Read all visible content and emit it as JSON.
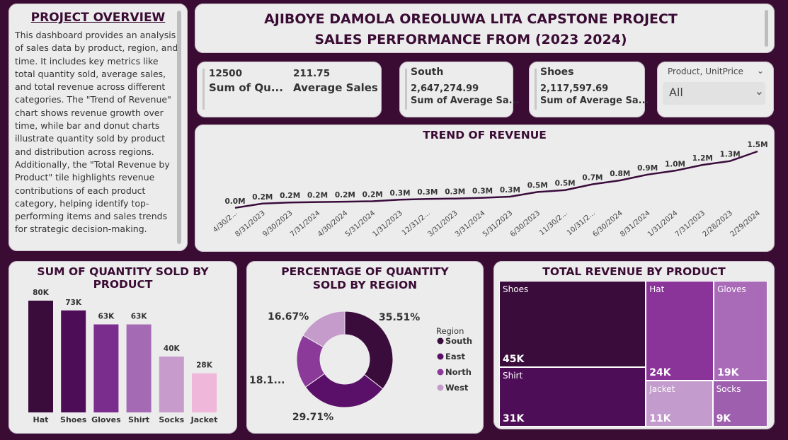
{
  "overview": {
    "title": "PROJECT OVERVIEW",
    "text": "This dashboard provides an analysis of sales data by product, region, and time. It includes key metrics like total quantity sold, average sales, and total revenue across different categories. The \"Trend of Revenue\" chart shows revenue growth over time, while bar and donut charts illustrate quantity sold by product and distribution across regions. Additionally, the \"Total Revenue by Product\" tile highlights revenue contributions of each product category, helping identify top-performing items and sales trends for strategic decision-making."
  },
  "header": {
    "line1": "AJIBOYE DAMOLA OREOLUWA LITA CAPSTONE PROJECT",
    "line2": "SALES PERFORMANCE FROM (2023  2024)"
  },
  "kpis": {
    "qty_value": "12500",
    "qty_label": "Sum of Qu...",
    "avg_value": "211.75",
    "avg_label": "Average Sales",
    "region_name": "South",
    "region_value": "2,647,274.99",
    "region_label": "Sum of Average Sa...",
    "product_name": "Shoes",
    "product_value": "2,117,597.69",
    "product_label": "Sum of Average Sa..."
  },
  "slicer": {
    "label": "Product, UnitPrice",
    "value": "All"
  },
  "colors": {
    "dark": "#3a0c3b",
    "deep": "#4e0d57",
    "mid": "#7b2d8e",
    "light": "#a46bb4",
    "pale": "#c79ccd",
    "pink": "#efb8da"
  },
  "chart_data": [
    {
      "id": "trend",
      "type": "line",
      "title": "TREND OF REVENUE",
      "x": [
        "4/30/2...",
        "8/31/2023",
        "9/30/2023",
        "7/31/2024",
        "4/30/2024",
        "5/31/2024",
        "1/31/2023",
        "12/31/2...",
        "3/31/2023",
        "3/31/2024",
        "5/31/2023",
        "6/30/2023",
        "11/30/2...",
        "10/31/2...",
        "6/30/2024",
        "8/31/2024",
        "1/31/2024",
        "7/31/2023",
        "2/28/2023",
        "2/29/2024"
      ],
      "y": [
        0.04,
        0.15,
        0.18,
        0.19,
        0.2,
        0.21,
        0.25,
        0.27,
        0.28,
        0.3,
        0.33,
        0.45,
        0.5,
        0.65,
        0.75,
        0.9,
        1.0,
        1.15,
        1.25,
        1.5
      ],
      "labels": [
        "0.0M",
        "0.2M",
        "0.2M",
        "0.2M",
        "0.2M",
        "0.2M",
        "0.3M",
        "0.3M",
        "0.3M",
        "0.3M",
        "0.3M",
        "0.5M",
        "0.5M",
        "0.7M",
        "0.8M",
        "0.9M",
        "1.0M",
        "1.2M",
        "1.3M",
        "1.5M"
      ]
    },
    {
      "id": "qty",
      "type": "bar",
      "title": "SUM OF QUANTITY SOLD BY PRODUCT",
      "categories": [
        "Hat",
        "Shoes",
        "Gloves",
        "Shirt",
        "Socks",
        "Jacket"
      ],
      "values": [
        80,
        73,
        63,
        63,
        40,
        28
      ],
      "labels": [
        "80K",
        "73K",
        "63K",
        "63K",
        "40K",
        "28K"
      ],
      "colors": [
        "#3a0c3b",
        "#4e0d57",
        "#7b2d8e",
        "#a46bb4",
        "#c79ccd",
        "#efb8da"
      ]
    },
    {
      "id": "donut",
      "type": "pie",
      "title": "PERCENTAGE OF QUANTITY SOLD BY REGION",
      "legend_title": "Region",
      "categories": [
        "South",
        "East",
        "North",
        "West"
      ],
      "values": [
        35.51,
        29.71,
        18.11,
        16.67
      ],
      "labels": [
        "35.51%",
        "29.71%",
        "18.1...",
        "16.67%"
      ],
      "colors": [
        "#3a0c3b",
        "#5a1068",
        "#8b3a9a",
        "#c49bcb"
      ]
    },
    {
      "id": "treemap",
      "type": "treemap",
      "title": "TOTAL REVENUE BY PRODUCT",
      "categories": [
        "Shoes",
        "Shirt",
        "Hat",
        "Gloves",
        "Jacket",
        "Socks"
      ],
      "values": [
        45,
        31,
        24,
        19,
        11,
        9
      ],
      "labels": [
        "45K",
        "31K",
        "24K",
        "19K",
        "11K",
        "9K"
      ],
      "colors": [
        "#3a0c3b",
        "#4e0d57",
        "#8a3398",
        "#a96bb8",
        "#c39bcc",
        "#9d5fae"
      ]
    }
  ]
}
